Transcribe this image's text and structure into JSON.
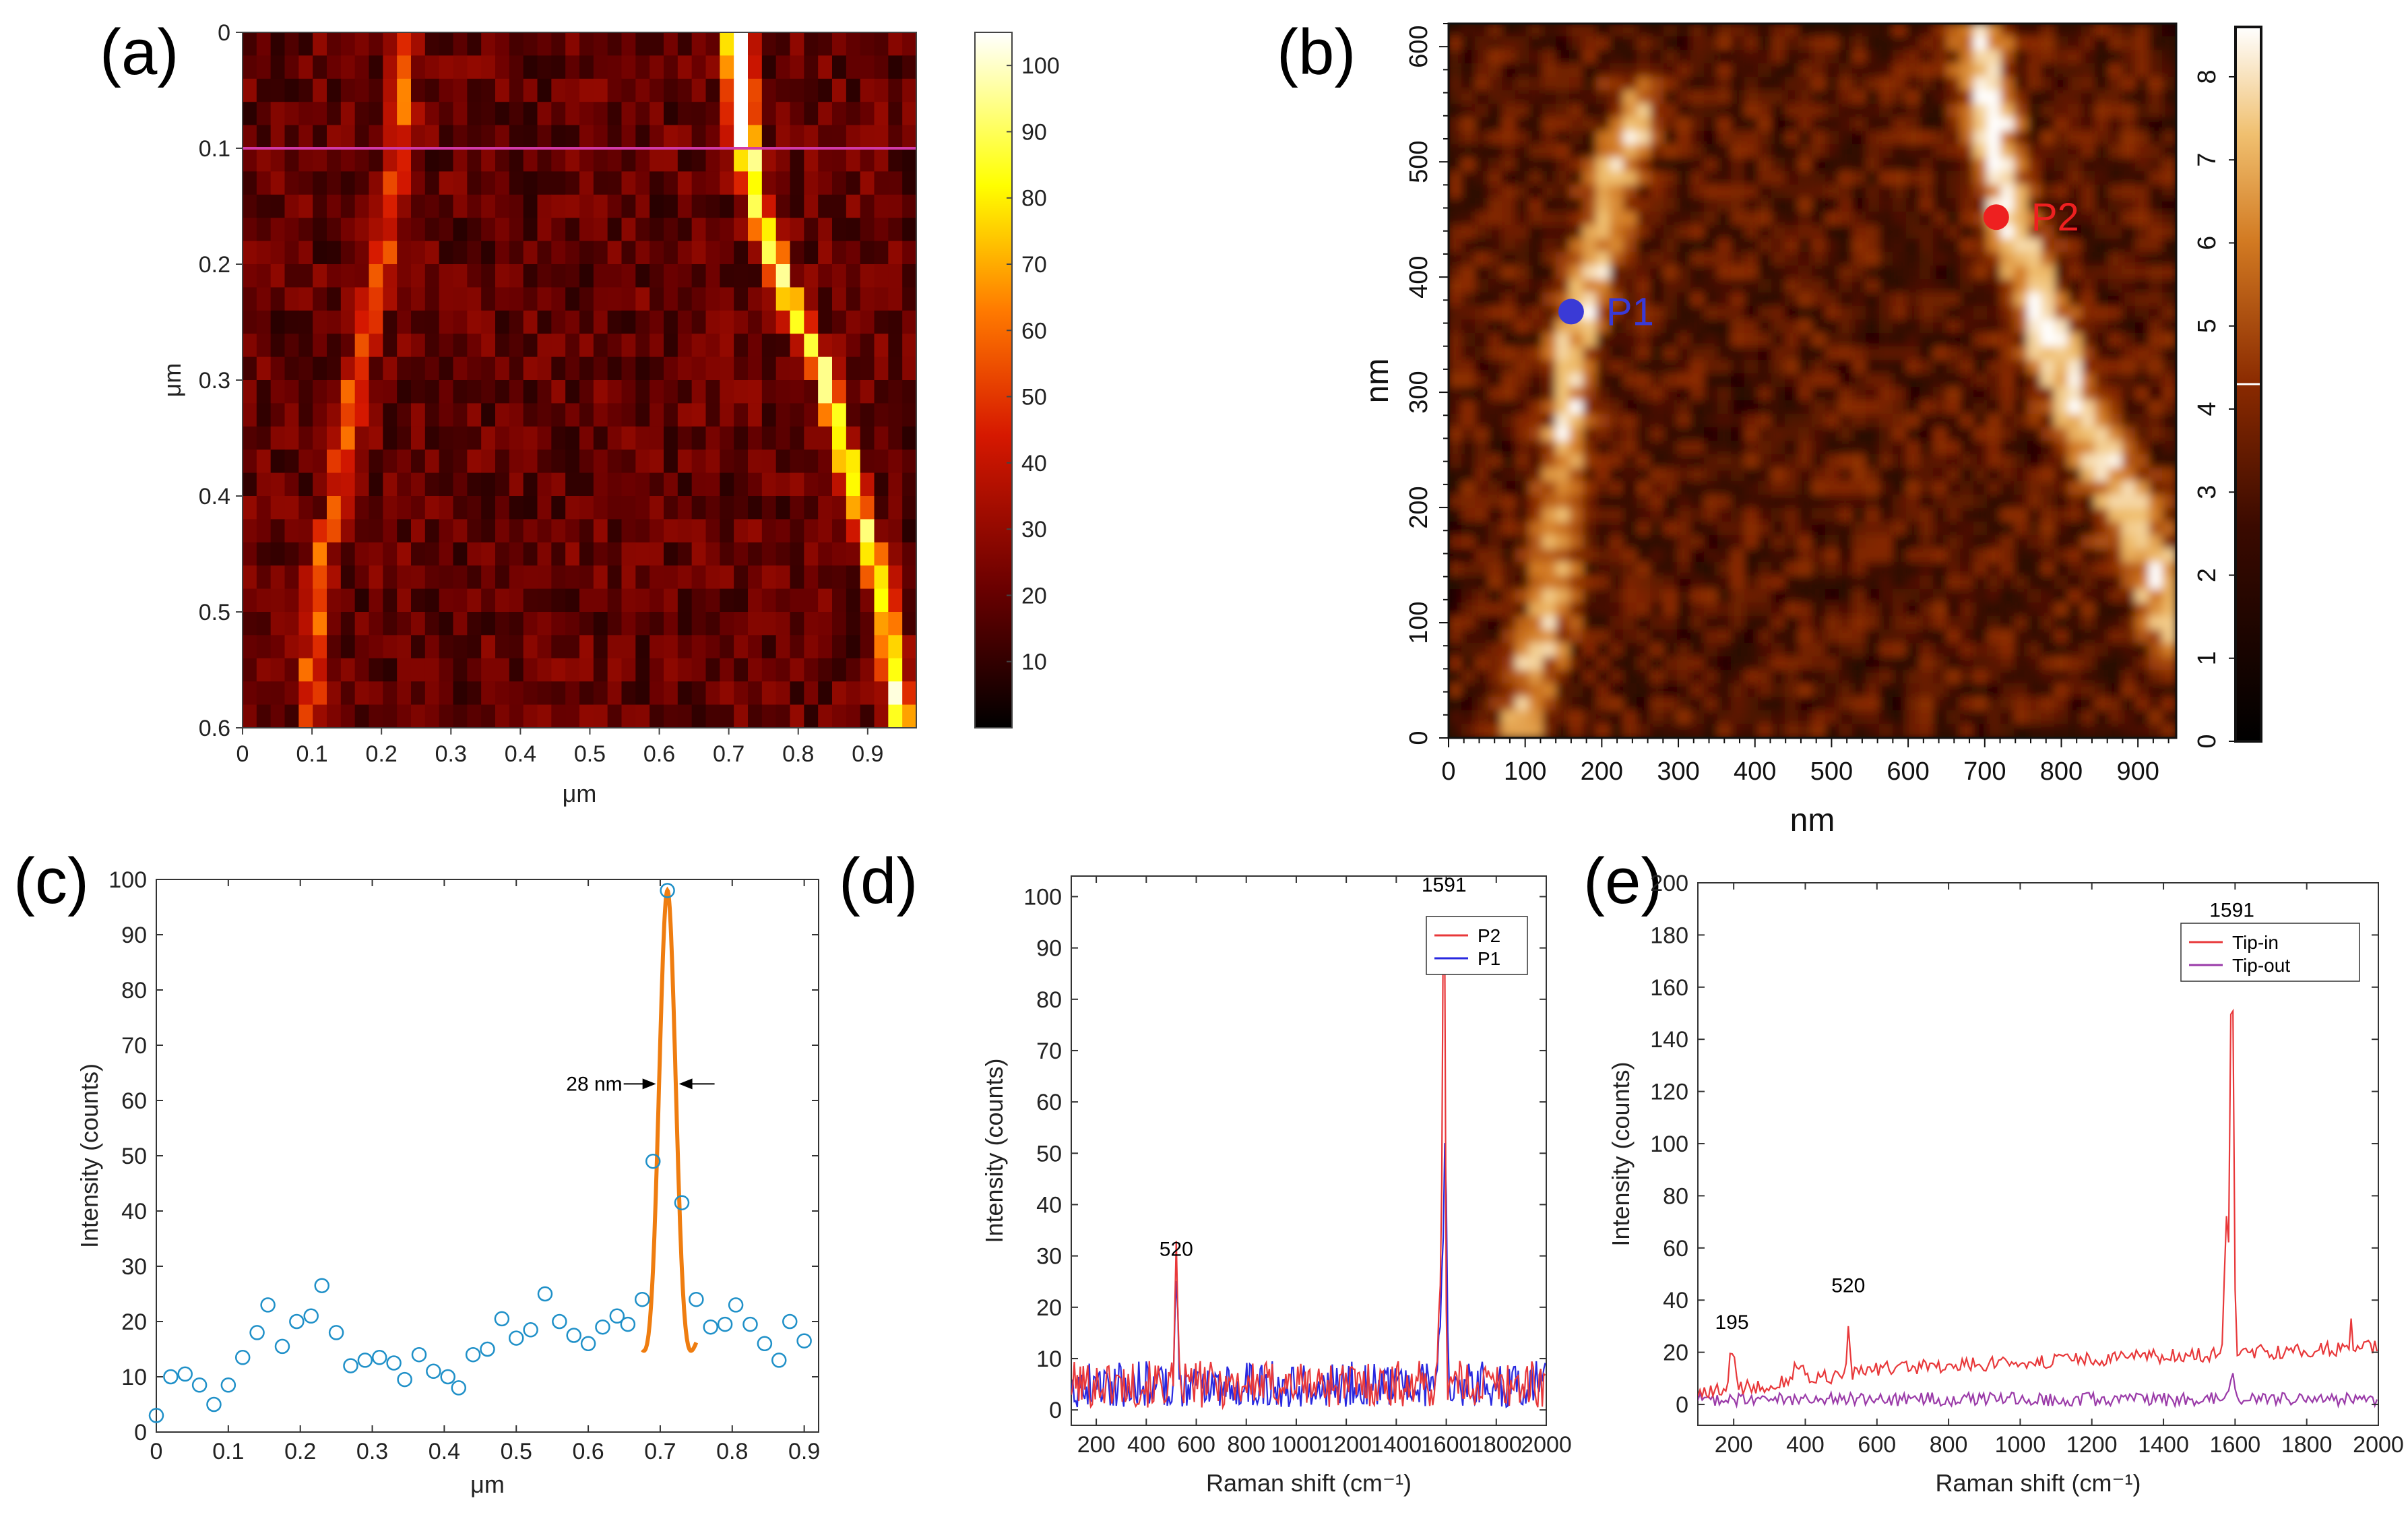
{
  "panels": {
    "a": "(a)",
    "b": "(b)",
    "c": "(c)",
    "d": "(d)",
    "e": "(e)"
  },
  "colors": {
    "heatmap_low": "#000000",
    "heatmap_mid": "#c01800",
    "heatmap_high": "#ffffff",
    "profile_line": "#d23aa8",
    "afm_dark": "#1a0600",
    "afm_bright": "#fff3c8",
    "marker_p1": "#3a3ad6",
    "marker_p2": "#ee2020",
    "fit_curve": "#ef7d10",
    "points": "#1f90c8",
    "series_red": "#e8383a",
    "series_blue": "#2828e0",
    "series_purple": "#9a3aa8"
  },
  "chart_data": [
    {
      "id": "a",
      "type": "heatmap",
      "xlabel": "μm",
      "ylabel": "μm",
      "xlim": [
        0,
        0.97
      ],
      "ylim": [
        0,
        0.6
      ],
      "xticks": [
        "0",
        "0.1",
        "0.2",
        "0.3",
        "0.4",
        "0.5",
        "0.6",
        "0.7",
        "0.8",
        "0.9"
      ],
      "yticks": [
        "0",
        "0.1",
        "0.2",
        "0.3",
        "0.4",
        "0.5",
        "0.6"
      ],
      "colorbar": {
        "range": [
          0,
          105
        ],
        "ticks": [
          "10",
          "20",
          "30",
          "40",
          "50",
          "60",
          "70",
          "80",
          "90",
          "100"
        ]
      },
      "grid_size": [
        48,
        30
      ],
      "profile_line_y": 0.1,
      "ridges": [
        {
          "name": "left",
          "points": [
            [
              0.23,
              0.07
            ],
            [
              0.21,
              0.17
            ],
            [
              0.16,
              0.3
            ],
            [
              0.14,
              0.4
            ],
            [
              0.11,
              0.45
            ],
            [
              0.1,
              0.55
            ]
          ],
          "peak": 42
        },
        {
          "name": "right",
          "points": [
            [
              0.71,
              0.0
            ],
            [
              0.72,
              0.08
            ],
            [
              0.74,
              0.15
            ],
            [
              0.78,
              0.22
            ],
            [
              0.84,
              0.3
            ],
            [
              0.88,
              0.4
            ],
            [
              0.92,
              0.48
            ],
            [
              0.95,
              0.6
            ]
          ],
          "peak": 100
        }
      ]
    },
    {
      "id": "b",
      "type": "heatmap",
      "xlabel": "nm",
      "ylabel": "nm",
      "xlim": [
        0,
        950
      ],
      "ylim": [
        0,
        620
      ],
      "xticks": [
        "0",
        "100",
        "200",
        "300",
        "400",
        "500",
        "600",
        "700",
        "800",
        "900"
      ],
      "yticks": [
        "0",
        "100",
        "200",
        "300",
        "400",
        "500",
        "600"
      ],
      "colorbar": {
        "range": [
          0,
          8.6
        ],
        "ticks": [
          "0",
          "1",
          "2",
          "3",
          "4",
          "5",
          "6",
          "7",
          "8"
        ],
        "marker": 4.3
      },
      "markers": [
        {
          "label": "P1",
          "x": 160,
          "y": 370
        },
        {
          "label": "P2",
          "x": 715,
          "y": 452
        }
      ]
    },
    {
      "id": "c",
      "type": "scatter",
      "xlabel": "μm",
      "ylabel": "Intensity (counts)",
      "xlim": [
        0,
        0.92
      ],
      "ylim": [
        0,
        100
      ],
      "xticks": [
        "0",
        "0.1",
        "0.2",
        "0.3",
        "0.4",
        "0.5",
        "0.6",
        "0.7",
        "0.8",
        "0.9"
      ],
      "yticks": [
        "0",
        "10",
        "20",
        "30",
        "40",
        "50",
        "60",
        "70",
        "80",
        "90",
        "100"
      ],
      "points": [
        [
          0.0,
          3
        ],
        [
          0.02,
          10
        ],
        [
          0.04,
          10.5
        ],
        [
          0.06,
          8.5
        ],
        [
          0.08,
          5
        ],
        [
          0.1,
          8.5
        ],
        [
          0.12,
          13.5
        ],
        [
          0.14,
          18
        ],
        [
          0.155,
          23
        ],
        [
          0.175,
          15.5
        ],
        [
          0.195,
          20
        ],
        [
          0.215,
          21
        ],
        [
          0.23,
          26.5
        ],
        [
          0.25,
          18
        ],
        [
          0.27,
          12
        ],
        [
          0.29,
          13
        ],
        [
          0.31,
          13.5
        ],
        [
          0.33,
          12.5
        ],
        [
          0.345,
          9.5
        ],
        [
          0.365,
          14
        ],
        [
          0.385,
          11
        ],
        [
          0.405,
          10
        ],
        [
          0.42,
          8
        ],
        [
          0.44,
          14
        ],
        [
          0.46,
          15
        ],
        [
          0.48,
          20.5
        ],
        [
          0.5,
          17
        ],
        [
          0.52,
          18.5
        ],
        [
          0.54,
          25
        ],
        [
          0.56,
          20
        ],
        [
          0.58,
          17.5
        ],
        [
          0.6,
          16
        ],
        [
          0.62,
          19
        ],
        [
          0.64,
          21
        ],
        [
          0.655,
          19.5
        ],
        [
          0.675,
          24
        ],
        [
          0.69,
          49
        ],
        [
          0.71,
          98
        ],
        [
          0.73,
          41.5
        ],
        [
          0.75,
          24
        ],
        [
          0.77,
          19
        ],
        [
          0.79,
          19.5
        ],
        [
          0.805,
          23
        ],
        [
          0.825,
          19.5
        ],
        [
          0.845,
          16
        ],
        [
          0.865,
          13
        ],
        [
          0.88,
          20
        ],
        [
          0.9,
          16.5
        ]
      ],
      "fit": {
        "center": 0.71,
        "amplitude": 98,
        "fwhm": 0.028,
        "baseline": 0,
        "range": [
          0.675,
          0.75
        ]
      },
      "annotation": "28 nm"
    },
    {
      "id": "d",
      "type": "line",
      "xlabel": "Raman shift (cm⁻¹)",
      "ylabel": "Intensity (counts)",
      "xlim": [
        100,
        2000
      ],
      "ylim": [
        -3,
        104
      ],
      "xticks": [
        "200",
        "400",
        "600",
        "800",
        "1000",
        "1200",
        "1400",
        "1600",
        "1800",
        "2000"
      ],
      "yticks": [
        "0",
        "10",
        "20",
        "30",
        "40",
        "50",
        "60",
        "70",
        "80",
        "90",
        "100"
      ],
      "legend_position": "top-right",
      "series": [
        {
          "name": "P2",
          "color": "series_red",
          "baseline": 5,
          "noise": 3.5,
          "peaks": [
            [
              520,
              24,
              8
            ],
            [
              1580,
              26,
              12
            ],
            [
              1591,
              96,
              8
            ]
          ]
        },
        {
          "name": "P1",
          "color": "series_blue",
          "baseline": 5,
          "noise": 3.5,
          "peaks": [
            [
              520,
              24,
              8
            ],
            [
              1580,
              18,
              12
            ],
            [
              1596,
              52,
              9
            ]
          ]
        }
      ],
      "annotations": [
        {
          "text": "520",
          "x": 520,
          "y": 30
        },
        {
          "text": "1591",
          "x": 1591,
          "y": 101
        }
      ]
    },
    {
      "id": "e",
      "type": "line",
      "xlabel": "Raman shift (cm⁻¹)",
      "ylabel": "Intensity (counts)",
      "xlim": [
        100,
        2000
      ],
      "ylim": [
        -8,
        200
      ],
      "xticks": [
        "200",
        "400",
        "600",
        "800",
        "1000",
        "1200",
        "1400",
        "1600",
        "1800",
        "2000"
      ],
      "yticks": [
        "0",
        "20",
        "40",
        "60",
        "80",
        "100",
        "120",
        "140",
        "160",
        "180",
        "200"
      ],
      "legend_position": "top-right",
      "series": [
        {
          "name": "Tip-in",
          "color": "series_red",
          "baseline": "rising",
          "noise": 2.2,
          "peaks": [
            [
              195,
              16,
              12
            ],
            [
              380,
              6,
              25
            ],
            [
              520,
              20,
              6
            ],
            [
              1575,
              50,
              8
            ],
            [
              1591,
              160,
              8
            ],
            [
              1925,
              10,
              4
            ]
          ]
        },
        {
          "name": "Tip-out",
          "color": "series_purple",
          "baseline": 2,
          "noise": 2.0,
          "peaks": [
            [
              1591,
              9,
              8
            ]
          ]
        }
      ],
      "annotations": [
        {
          "text": "195",
          "x": 195,
          "y": 29
        },
        {
          "text": "520",
          "x": 520,
          "y": 43
        },
        {
          "text": "1591",
          "x": 1591,
          "y": 187
        }
      ]
    }
  ]
}
